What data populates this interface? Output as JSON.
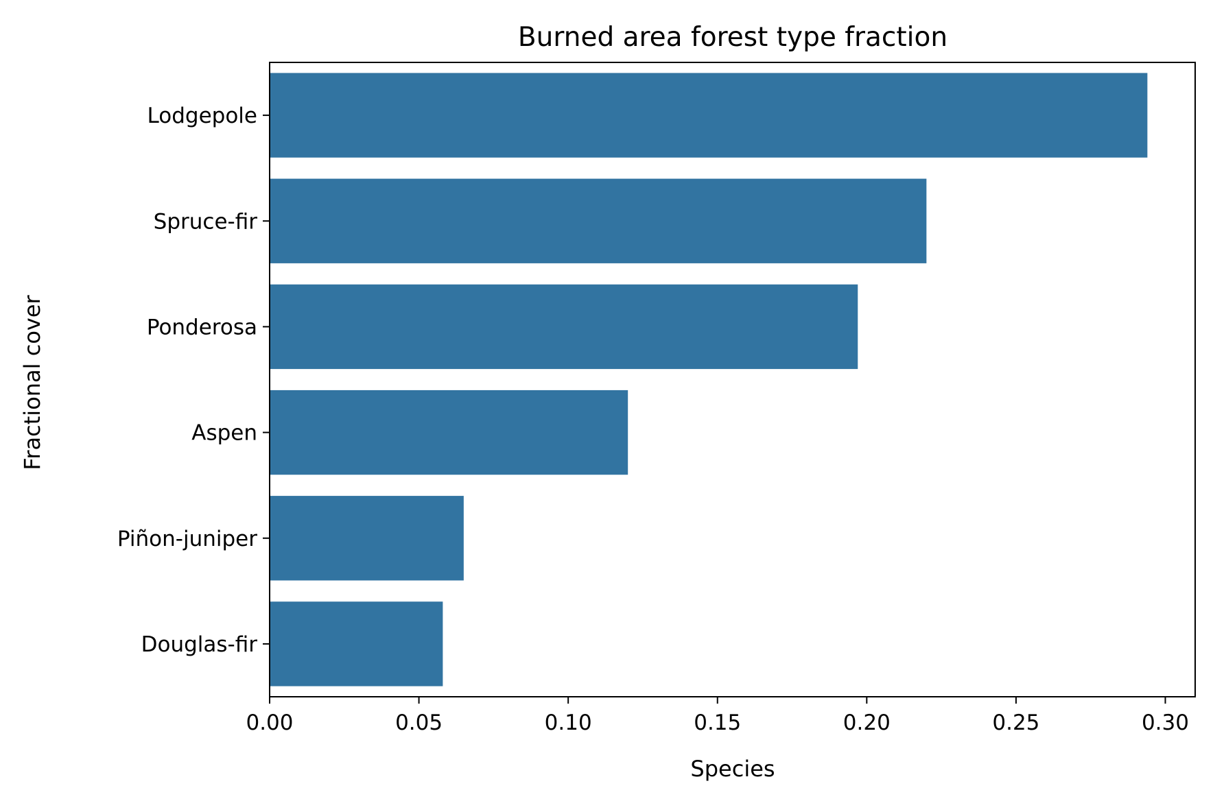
{
  "chart_data": {
    "type": "bar",
    "orientation": "horizontal",
    "title": "Burned area forest type fraction",
    "xlabel": "Species",
    "ylabel": "Fractional cover",
    "categories": [
      "Lodgepole",
      "Spruce-fir",
      "Ponderosa",
      "Aspen",
      "Piñon-juniper",
      "Douglas-fir"
    ],
    "values": [
      0.294,
      0.22,
      0.197,
      0.12,
      0.065,
      0.058
    ],
    "xlim": [
      0,
      0.31
    ],
    "xticks": [
      "0.00",
      "0.05",
      "0.10",
      "0.15",
      "0.20",
      "0.25",
      "0.30"
    ],
    "grid": false,
    "legend": "none",
    "bar_color": "#3274a1"
  }
}
